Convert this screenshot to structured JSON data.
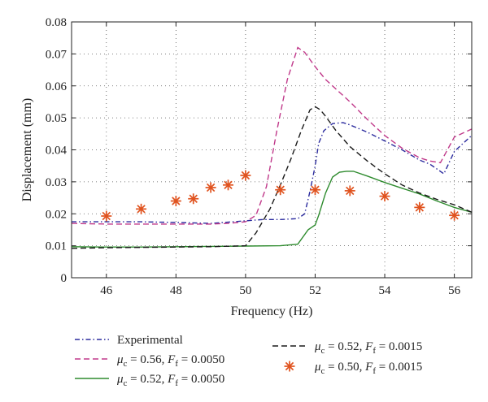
{
  "chart_data": {
    "type": "line",
    "xlabel": "Frequency (Hz)",
    "ylabel": "Displacement (mm)",
    "xlim": [
      45,
      56.5
    ],
    "ylim": [
      0,
      0.08
    ],
    "xticks": [
      46,
      48,
      50,
      52,
      54,
      56
    ],
    "yticks": [
      0,
      0.01,
      0.02,
      0.03,
      0.04,
      0.05,
      0.06,
      0.07,
      0.08
    ],
    "ytick_labels": [
      "0",
      "0.01",
      "0.02",
      "0.03",
      "0.04",
      "0.05",
      "0.06",
      "0.07",
      "0.08"
    ],
    "grid": true,
    "legend_position": "below",
    "series": [
      {
        "name": "Experimental",
        "style": "dash-dot",
        "color": "#2b2b9e",
        "x": [
          45,
          46,
          47,
          48,
          49,
          50,
          50.5,
          51,
          51.5,
          51.7,
          51.85,
          52,
          52.1,
          52.25,
          52.5,
          52.8,
          53,
          53.5,
          54,
          54.5,
          55,
          55.3,
          55.5,
          55.7,
          56,
          56.3,
          56.5
        ],
        "y": [
          0.0175,
          0.0175,
          0.0175,
          0.0173,
          0.017,
          0.0178,
          0.0182,
          0.0182,
          0.0185,
          0.02,
          0.027,
          0.035,
          0.042,
          0.046,
          0.0482,
          0.0485,
          0.0478,
          0.0455,
          0.0428,
          0.04,
          0.0368,
          0.0355,
          0.034,
          0.0325,
          0.0395,
          0.0425,
          0.0445
        ]
      },
      {
        "name": "μc = 0.56, Ff = 0.0050",
        "style": "dashed",
        "color": "#c0398a",
        "x": [
          45,
          46,
          47,
          48,
          49,
          49.5,
          50,
          50.3,
          50.6,
          50.9,
          51.2,
          51.5,
          51.7,
          52,
          52.3,
          52.7,
          53,
          53.5,
          54,
          54.5,
          55,
          55.3,
          55.6,
          56,
          56.3,
          56.5
        ],
        "y": [
          0.017,
          0.0168,
          0.0168,
          0.0168,
          0.0168,
          0.017,
          0.0175,
          0.0195,
          0.0285,
          0.046,
          0.062,
          0.072,
          0.0705,
          0.066,
          0.062,
          0.058,
          0.055,
          0.0495,
          0.0445,
          0.0405,
          0.0375,
          0.0365,
          0.036,
          0.044,
          0.0455,
          0.0465
        ]
      },
      {
        "name": "μc = 0.52, Ff = 0.0050",
        "style": "solid",
        "color": "#2e8b2e",
        "x": [
          45,
          46,
          47,
          48,
          49,
          50,
          51,
          51.5,
          51.8,
          52,
          52.1,
          52.3,
          52.5,
          52.7,
          52.9,
          53.1,
          53.5,
          54,
          54.5,
          55,
          55.5,
          56,
          56.5
        ],
        "y": [
          0.0097,
          0.0096,
          0.0096,
          0.0097,
          0.0098,
          0.0099,
          0.01,
          0.0105,
          0.015,
          0.0165,
          0.0195,
          0.0265,
          0.0315,
          0.033,
          0.0333,
          0.0333,
          0.0318,
          0.0298,
          0.028,
          0.0262,
          0.024,
          0.022,
          0.0205
        ]
      },
      {
        "name": "μc = 0.52, Ff = 0.0015",
        "style": "dashed",
        "color": "#1a1a1a",
        "x": [
          45,
          46,
          47,
          48,
          49,
          50,
          50.3,
          50.7,
          51,
          51.3,
          51.6,
          51.85,
          52,
          52.15,
          52.3,
          52.6,
          53,
          53.5,
          54,
          54.5,
          55,
          55.5,
          56,
          56.5
        ],
        "y": [
          0.0092,
          0.0094,
          0.0095,
          0.0096,
          0.0097,
          0.01,
          0.014,
          0.0215,
          0.029,
          0.037,
          0.046,
          0.0525,
          0.0535,
          0.0525,
          0.0505,
          0.046,
          0.041,
          0.0365,
          0.0325,
          0.029,
          0.0265,
          0.0245,
          0.0228,
          0.0205
        ]
      },
      {
        "name": "μc = 0.50, Ff = 0.0015",
        "style": "markers",
        "color": "#e0531f",
        "x": [
          46,
          47,
          48,
          48.5,
          49,
          49.5,
          50,
          51,
          52,
          53,
          54,
          55,
          56
        ],
        "y": [
          0.0193,
          0.0215,
          0.024,
          0.0247,
          0.0282,
          0.029,
          0.032,
          0.0275,
          0.0275,
          0.0272,
          0.0255,
          0.022,
          0.0195
        ]
      }
    ]
  },
  "legend": [
    {
      "series": 0,
      "text": "Experimental",
      "mu": "",
      "ff": ""
    },
    {
      "series": 1,
      "text": "",
      "mu": "0.56",
      "ff": "0.0050"
    },
    {
      "series": 2,
      "text": "",
      "mu": "0.52",
      "ff": "0.0050"
    },
    {
      "series": 3,
      "text": "",
      "mu": "0.52",
      "ff": "0.0015"
    },
    {
      "series": 4,
      "text": "",
      "mu": "0.50",
      "ff": "0.0015"
    }
  ]
}
